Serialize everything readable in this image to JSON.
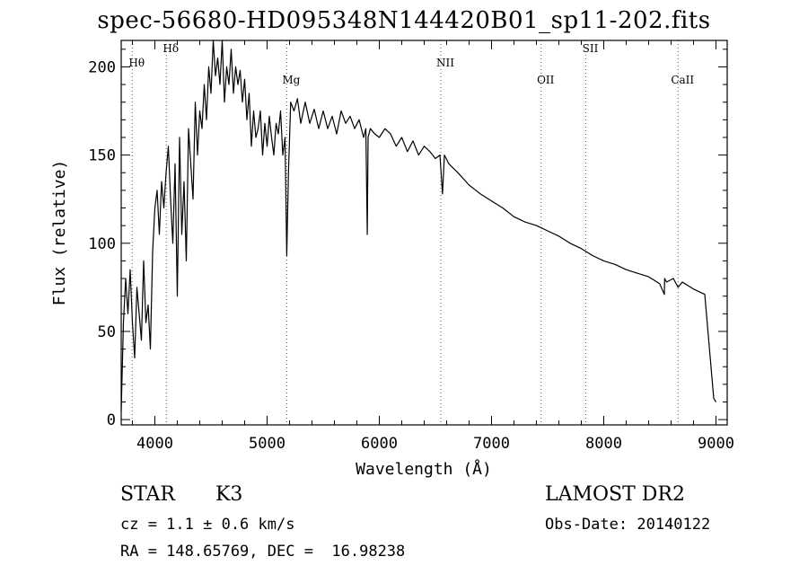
{
  "title": "spec-56680-HD095348N144420B01_sp11-202.fits",
  "info": {
    "class_label": "STAR",
    "subclass": "K3",
    "cz_line": "cz = 1.1 ± 0.6 km/s",
    "radec_line": "RA = 148.65769, DEC =  16.98238",
    "survey": "LAMOST DR2",
    "obs_date": "Obs-Date: 20140122"
  },
  "chart_data": {
    "type": "line",
    "xlabel": "Wavelength (Å)",
    "ylabel": "Flux (relative)",
    "xlim": [
      3700,
      9100
    ],
    "ylim": [
      -3,
      215
    ],
    "xticks": [
      4000,
      5000,
      6000,
      7000,
      8000,
      9000
    ],
    "yticks": [
      0,
      50,
      100,
      150,
      200
    ],
    "lines": [
      {
        "label": "Hθ",
        "x": 3798
      },
      {
        "label": "Hδ",
        "x": 4102
      },
      {
        "label": "Mg",
        "x": 5175
      },
      {
        "label": "NII",
        "x": 6548
      },
      {
        "label": "OII",
        "x": 7442
      },
      {
        "label": "SII",
        "x": 7840
      },
      {
        "label": "CaII",
        "x": 8662
      }
    ],
    "series": [
      {
        "x": [
          3700,
          3720,
          3740,
          3760,
          3780,
          3800,
          3820,
          3840,
          3860,
          3880,
          3900,
          3920,
          3940,
          3960,
          3980,
          4000,
          4020,
          4040,
          4060,
          4080,
          4100,
          4120,
          4140,
          4160,
          4180,
          4200,
          4220,
          4240,
          4260,
          4280,
          4300,
          4320,
          4340,
          4360,
          4380,
          4400,
          4420,
          4440,
          4460,
          4480,
          4500,
          4520,
          4540,
          4560,
          4580,
          4600,
          4620,
          4640,
          4660,
          4680,
          4700,
          4720,
          4740,
          4760,
          4780,
          4800,
          4820,
          4840,
          4860,
          4880,
          4900,
          4920,
          4940,
          4960,
          4980,
          5000,
          5020,
          5040,
          5060,
          5080,
          5100,
          5120,
          5140,
          5160,
          5175,
          5190,
          5210,
          5240,
          5270,
          5300,
          5340,
          5380,
          5420,
          5460,
          5500,
          5540,
          5580,
          5620,
          5660,
          5700,
          5740,
          5780,
          5820,
          5860,
          5880,
          5893,
          5900,
          5920,
          5960,
          6000,
          6050,
          6100,
          6150,
          6200,
          6250,
          6300,
          6350,
          6400,
          6450,
          6500,
          6540,
          6563,
          6580,
          6620,
          6700,
          6800,
          6900,
          7000,
          7100,
          7200,
          7300,
          7400,
          7500,
          7600,
          7700,
          7800,
          7900,
          8000,
          8100,
          8200,
          8300,
          8400,
          8498,
          8540,
          8542,
          8560,
          8620,
          8662,
          8700,
          8800,
          8900,
          8980,
          9000
        ],
        "y": [
          5,
          55,
          80,
          60,
          85,
          55,
          35,
          75,
          60,
          45,
          90,
          55,
          65,
          40,
          95,
          120,
          130,
          105,
          135,
          120,
          140,
          155,
          125,
          100,
          145,
          70,
          160,
          105,
          135,
          90,
          165,
          145,
          125,
          180,
          150,
          175,
          165,
          190,
          170,
          200,
          185,
          215,
          195,
          205,
          190,
          215,
          180,
          200,
          190,
          210,
          185,
          200,
          190,
          198,
          180,
          193,
          170,
          185,
          155,
          175,
          160,
          165,
          175,
          150,
          168,
          155,
          172,
          160,
          150,
          168,
          162,
          175,
          150,
          160,
          93,
          140,
          180,
          175,
          182,
          168,
          180,
          168,
          176,
          165,
          175,
          165,
          172,
          162,
          175,
          168,
          172,
          165,
          170,
          160,
          165,
          105,
          160,
          165,
          162,
          160,
          165,
          162,
          155,
          160,
          152,
          158,
          150,
          155,
          152,
          148,
          150,
          128,
          150,
          145,
          140,
          133,
          128,
          124,
          120,
          115,
          112,
          110,
          107,
          104,
          100,
          97,
          93,
          90,
          88,
          85,
          83,
          81,
          77,
          71,
          80,
          78,
          80,
          75,
          78,
          74,
          71,
          12,
          10
        ]
      }
    ]
  }
}
